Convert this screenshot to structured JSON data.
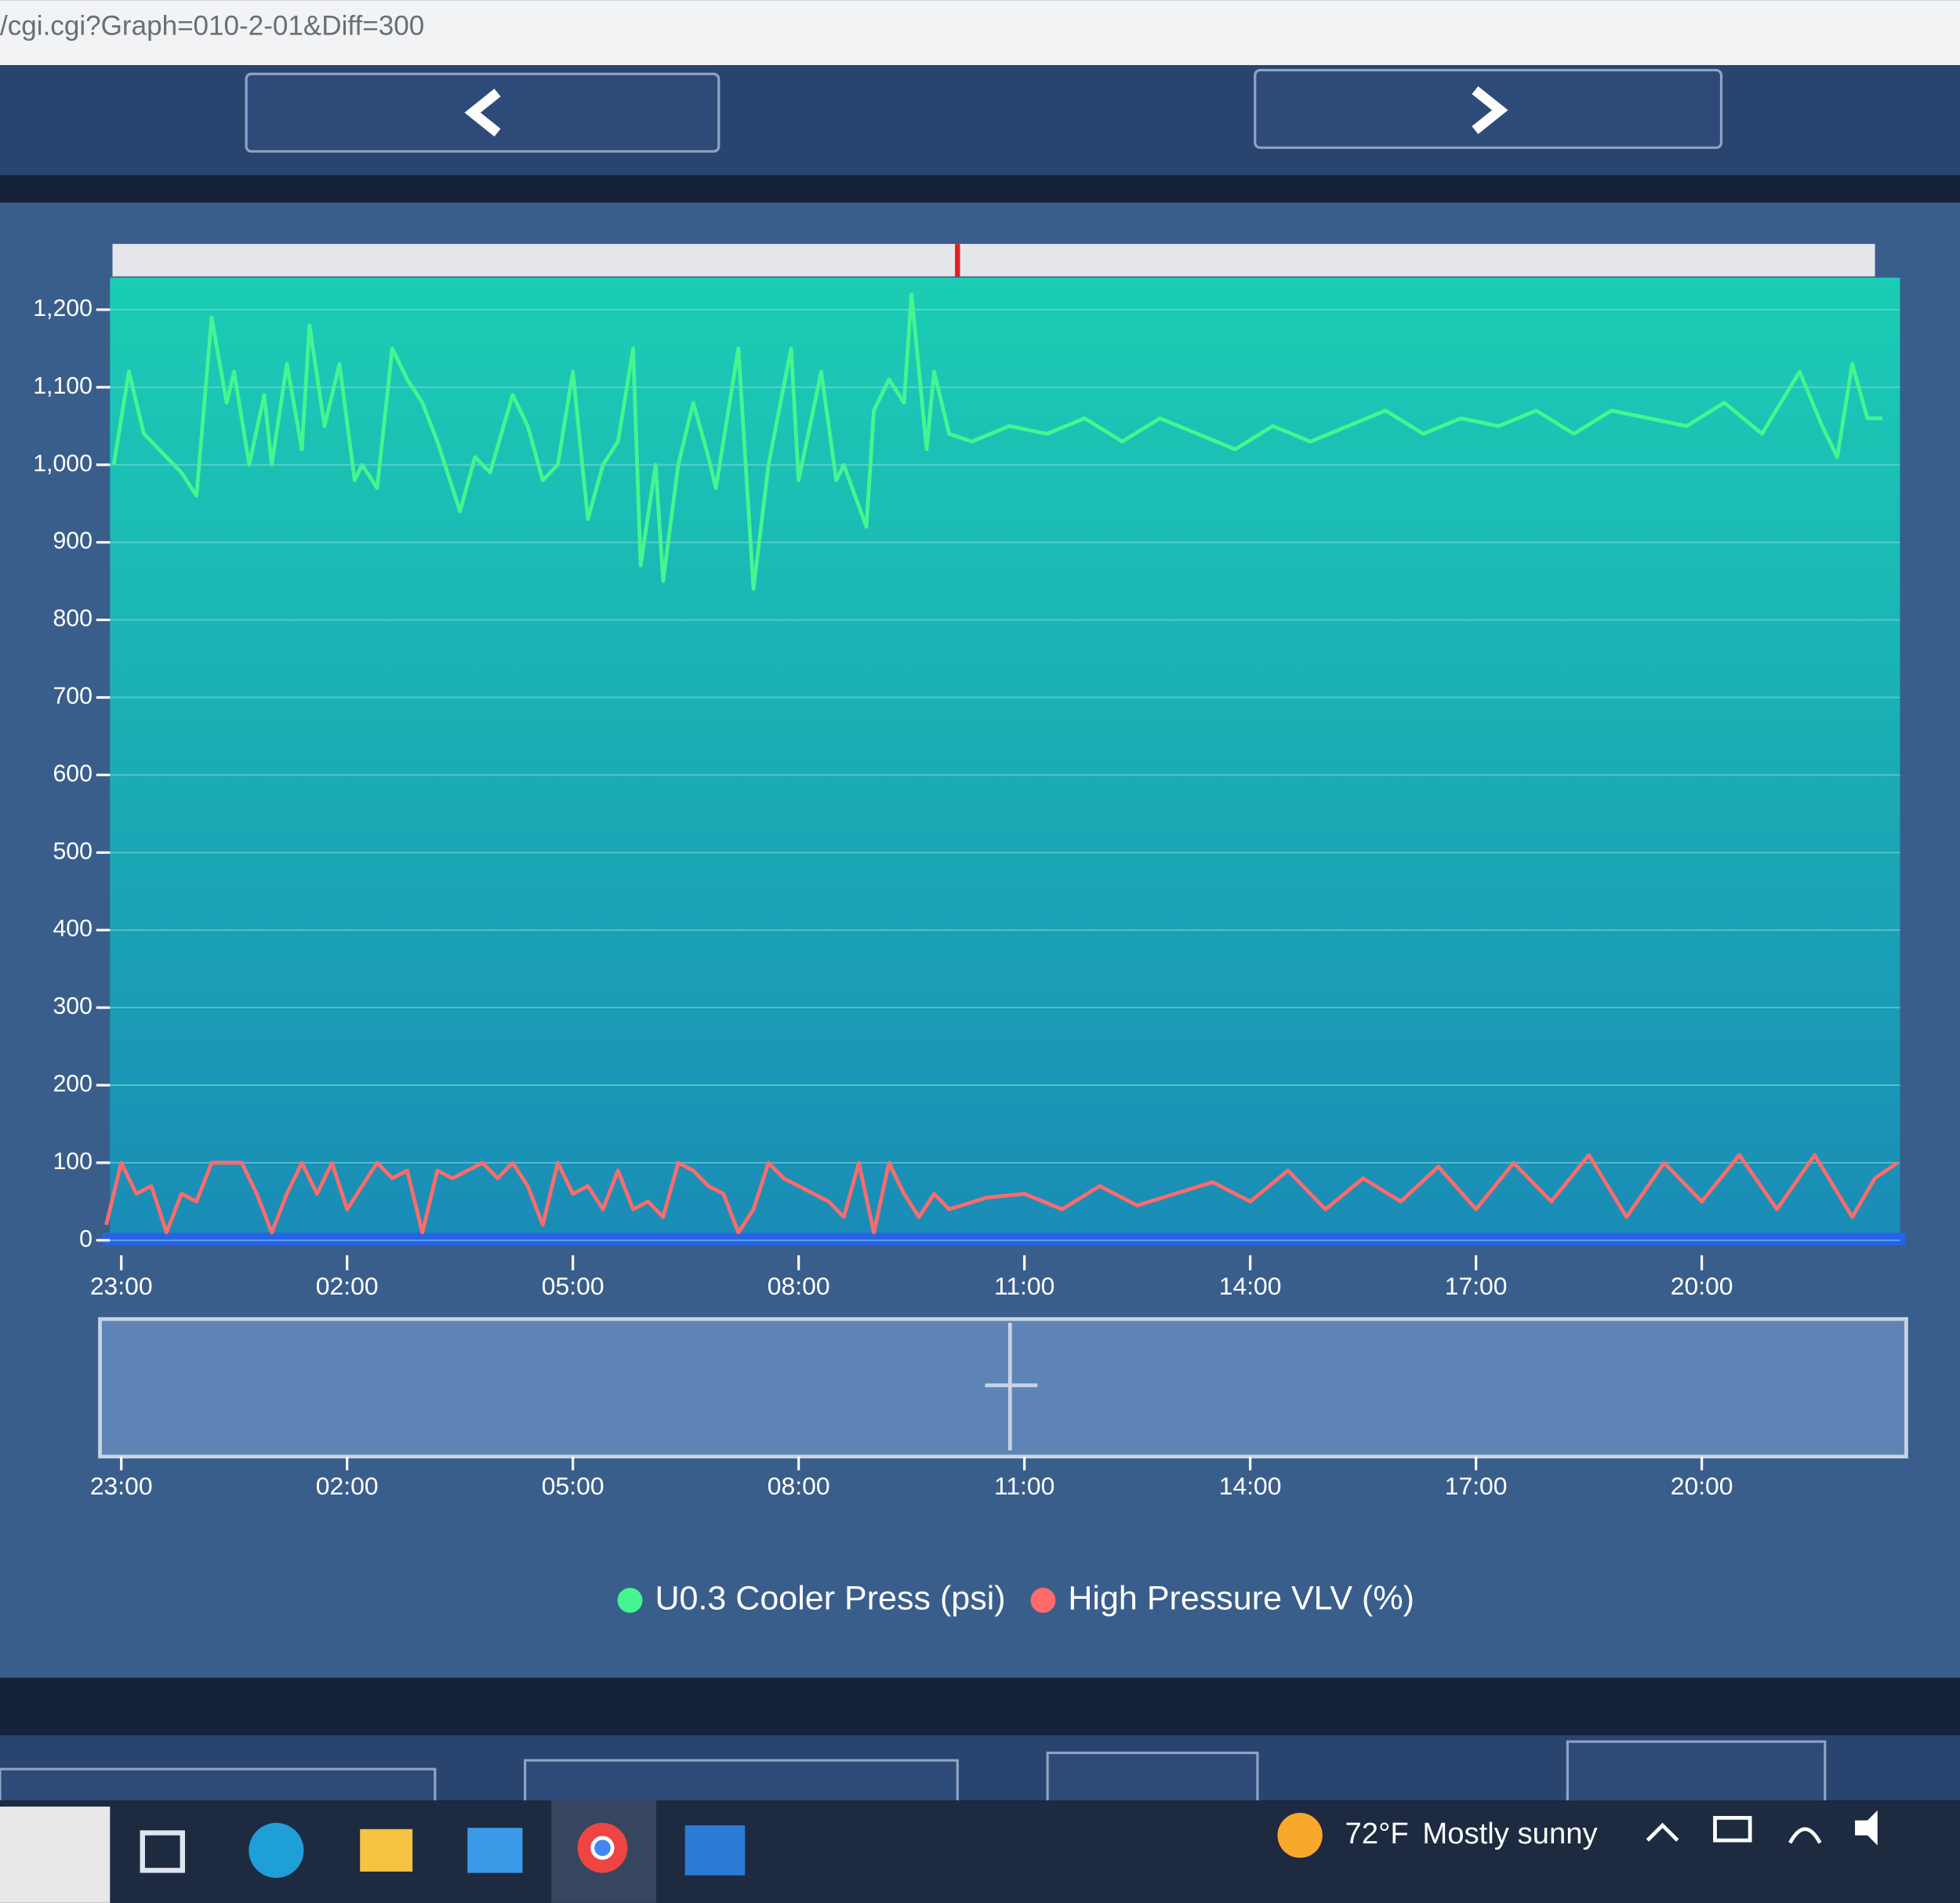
{
  "browser": {
    "url": "/cgi.cgi?Graph=010-2-01&Diff=300"
  },
  "chart_data": {
    "type": "line",
    "xlim": [
      -0.15,
      23.8
    ],
    "ylim": [
      0,
      1230
    ],
    "grid": true,
    "xticks": [
      {
        "value": 0,
        "label": "23:00"
      },
      {
        "value": 3,
        "label": "02:00"
      },
      {
        "value": 6,
        "label": "05:00"
      },
      {
        "value": 9,
        "label": "08:00"
      },
      {
        "value": 12,
        "label": "11:00"
      },
      {
        "value": 15,
        "label": "14:00"
      },
      {
        "value": 18,
        "label": "17:00"
      },
      {
        "value": 21,
        "label": "20:00"
      }
    ],
    "yticks": [
      0,
      100,
      200,
      300,
      400,
      500,
      600,
      700,
      800,
      900,
      {
        "value": 1000,
        "label": "1,000"
      },
      {
        "value": 1100,
        "label": "1,100"
      },
      {
        "value": 1200,
        "label": "1,200"
      }
    ],
    "series": [
      {
        "name": "U0.3 Cooler Press (psi)",
        "color": "#45f58f",
        "x": [
          -0.1,
          0.1,
          0.3,
          0.5,
          0.8,
          1.0,
          1.2,
          1.4,
          1.5,
          1.7,
          1.9,
          2.0,
          2.2,
          2.4,
          2.5,
          2.7,
          2.9,
          3.1,
          3.2,
          3.4,
          3.6,
          3.8,
          4.0,
          4.2,
          4.5,
          4.7,
          4.9,
          5.2,
          5.4,
          5.6,
          5.8,
          6.0,
          6.2,
          6.4,
          6.6,
          6.8,
          6.9,
          7.1,
          7.2,
          7.4,
          7.6,
          7.8,
          7.9,
          8.2,
          8.4,
          8.6,
          8.9,
          9.0,
          9.3,
          9.5,
          9.6,
          9.9,
          10.0,
          10.2,
          10.4,
          10.5,
          10.7,
          10.8,
          11.0,
          11.3,
          11.8,
          12.3,
          12.8,
          13.3,
          13.8,
          14.3,
          14.8,
          15.3,
          15.8,
          16.3,
          16.8,
          17.3,
          17.8,
          18.3,
          18.8,
          19.3,
          19.8,
          20.3,
          20.8,
          21.3,
          21.8,
          22.3,
          22.6,
          22.8,
          23.0,
          23.2,
          23.4
        ],
        "values": [
          1000,
          1120,
          1040,
          1020,
          990,
          960,
          1190,
          1080,
          1120,
          1000,
          1090,
          1000,
          1130,
          1020,
          1180,
          1050,
          1130,
          980,
          1000,
          970,
          1150,
          1110,
          1080,
          1030,
          940,
          1010,
          990,
          1090,
          1050,
          980,
          1000,
          1120,
          930,
          1000,
          1030,
          1150,
          870,
          1000,
          850,
          1000,
          1080,
          1010,
          970,
          1150,
          840,
          1000,
          1150,
          980,
          1120,
          980,
          1000,
          920,
          1070,
          1110,
          1080,
          1220,
          1020,
          1120,
          1040,
          1030,
          1050,
          1040,
          1060,
          1030,
          1060,
          1040,
          1020,
          1050,
          1030,
          1050,
          1070,
          1040,
          1060,
          1050,
          1070,
          1040,
          1070,
          1060,
          1050,
          1080,
          1040,
          1120,
          1050,
          1010,
          1130,
          1060,
          1060
        ]
      },
      {
        "name": "High Pressure VLV (%)",
        "color": "#ff6b6b",
        "x": [
          -0.2,
          0.0,
          0.2,
          0.4,
          0.6,
          0.8,
          1.0,
          1.2,
          1.4,
          1.6,
          1.8,
          2.0,
          2.2,
          2.4,
          2.6,
          2.8,
          3.0,
          3.2,
          3.4,
          3.6,
          3.8,
          4.0,
          4.2,
          4.4,
          4.6,
          4.8,
          5.0,
          5.2,
          5.4,
          5.6,
          5.8,
          6.0,
          6.2,
          6.4,
          6.6,
          6.8,
          7.0,
          7.2,
          7.4,
          7.6,
          7.8,
          8.0,
          8.2,
          8.4,
          8.6,
          8.8,
          9.0,
          9.2,
          9.4,
          9.6,
          9.8,
          10.0,
          10.2,
          10.4,
          10.6,
          10.8,
          11.0,
          11.5,
          12.0,
          12.5,
          13.0,
          13.5,
          14.0,
          14.5,
          15.0,
          15.5,
          16.0,
          16.5,
          17.0,
          17.5,
          18.0,
          18.5,
          19.0,
          19.5,
          20.0,
          20.5,
          21.0,
          21.5,
          22.0,
          22.5,
          23.0,
          23.3,
          23.6
        ],
        "values": [
          20,
          100,
          60,
          70,
          10,
          60,
          50,
          100,
          100,
          100,
          60,
          10,
          60,
          100,
          60,
          100,
          40,
          70,
          100,
          80,
          90,
          10,
          90,
          80,
          90,
          100,
          80,
          100,
          70,
          20,
          100,
          60,
          70,
          40,
          90,
          40,
          50,
          30,
          100,
          90,
          70,
          60,
          10,
          40,
          100,
          80,
          70,
          60,
          50,
          30,
          100,
          10,
          100,
          60,
          30,
          60,
          40,
          55,
          60,
          40,
          70,
          45,
          60,
          75,
          50,
          90,
          40,
          80,
          50,
          95,
          40,
          100,
          50,
          110,
          30,
          100,
          50,
          110,
          40,
          110,
          30,
          80,
          100
        ]
      }
    ]
  },
  "taskbar": {
    "temperature": "72°F",
    "weather": "Mostly sunny"
  }
}
